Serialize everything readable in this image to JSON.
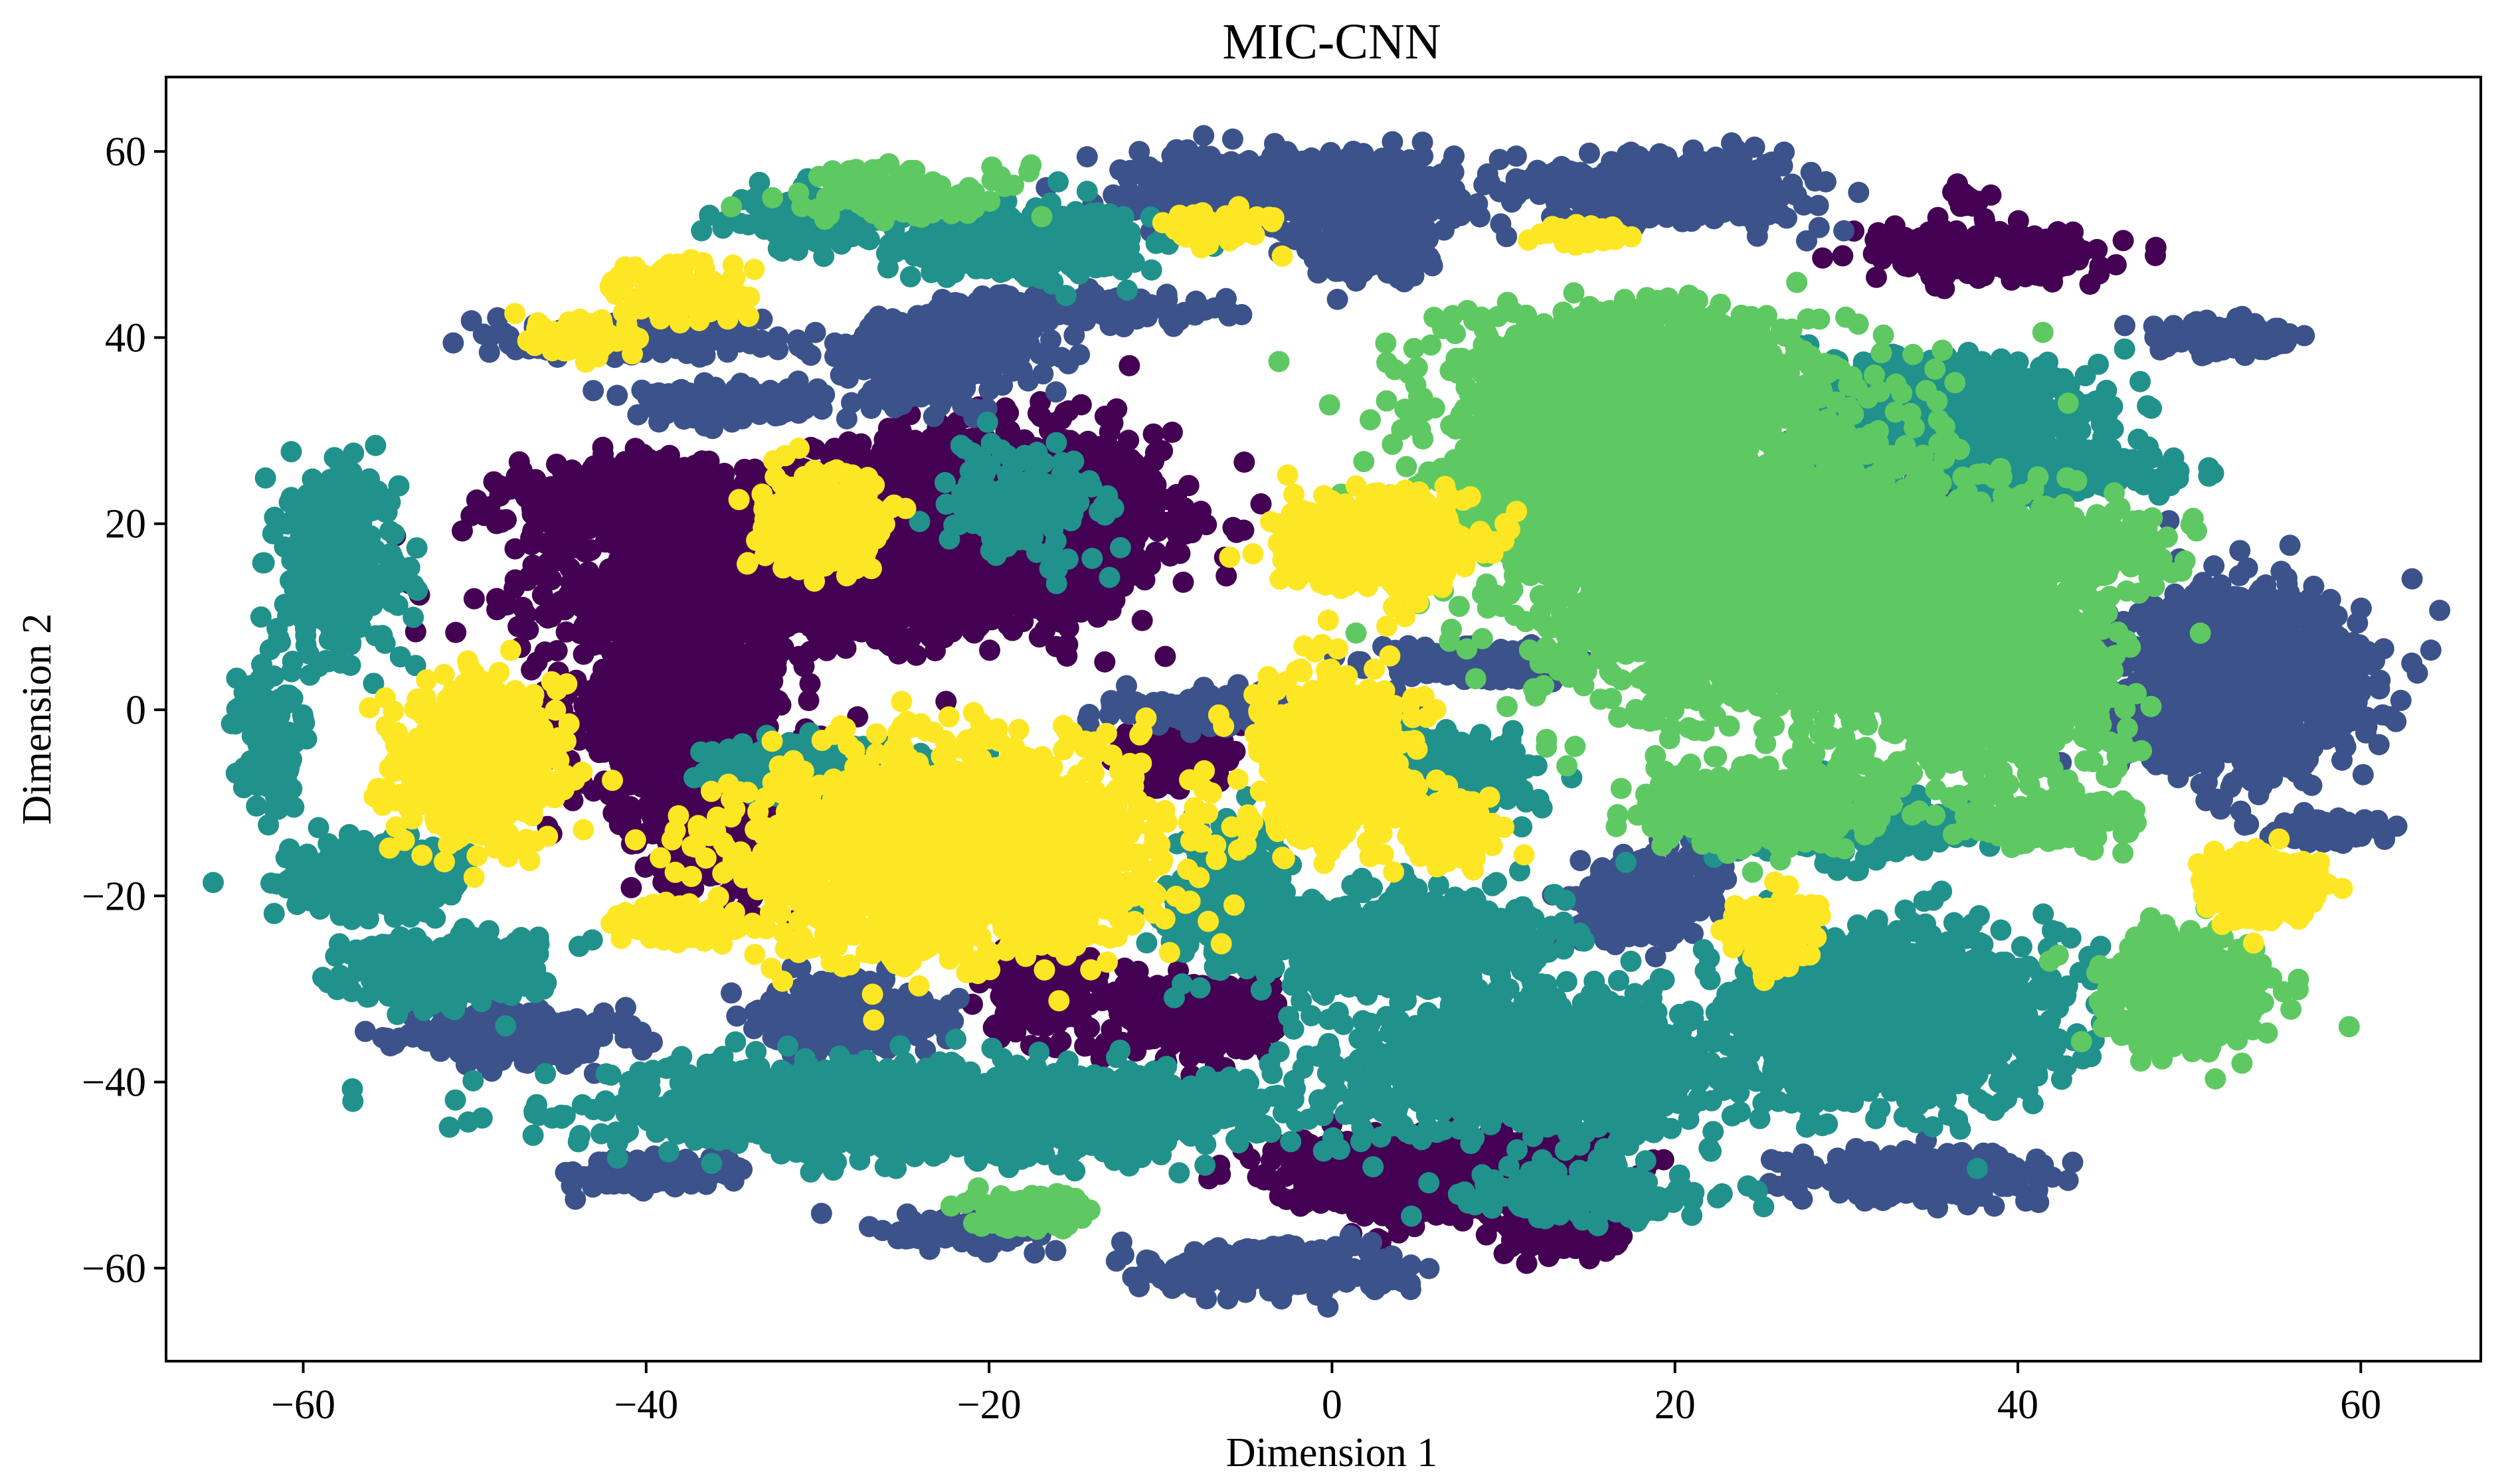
{
  "chart_data": {
    "type": "scatter",
    "title": "MIC-CNN",
    "xlabel": "Dimension 1",
    "ylabel": "Dimension 2",
    "xlim": [
      -68,
      67
    ],
    "ylim": [
      -70,
      68
    ],
    "x_ticks": [
      -60,
      -40,
      -20,
      0,
      20,
      40,
      60
    ],
    "y_ticks": [
      -60,
      -40,
      -20,
      0,
      20,
      40,
      60
    ],
    "x_tick_labels": [
      "−60",
      "−40",
      "−20",
      "0",
      "20",
      "40",
      "60"
    ],
    "y_tick_labels": [
      "−60",
      "−40",
      "−20",
      "0",
      "20",
      "40",
      "60"
    ],
    "grid": false,
    "legend": "none",
    "colors": {
      "purple": "#440154",
      "blue": "#3b528b",
      "teal": "#21918c",
      "green": "#5ec962",
      "yellow": "#fde725"
    },
    "series": [
      {
        "color": "#440154",
        "clusters": [
          {
            "cx": -20,
            "cy": 20,
            "rx": 11,
            "ry": 11,
            "n": 1700
          },
          {
            "cx": -33,
            "cy": 13,
            "rx": 15,
            "ry": 6,
            "n": 900
          },
          {
            "cx": -38,
            "cy": 0,
            "rx": 7,
            "ry": 12,
            "n": 850
          },
          {
            "cx": -40,
            "cy": 22,
            "rx": 9,
            "ry": 5,
            "n": 500
          },
          {
            "cx": -35,
            "cy": -12,
            "rx": 5,
            "ry": 8,
            "n": 450
          },
          {
            "cx": -17,
            "cy": -30,
            "rx": 3,
            "ry": 5,
            "n": 280
          },
          {
            "cx": -8,
            "cy": -33,
            "rx": 5,
            "ry": 5,
            "n": 320
          },
          {
            "cx": -9,
            "cy": -5,
            "rx": 3,
            "ry": 4,
            "n": 160
          },
          {
            "cx": 6,
            "cy": -50,
            "rx": 10,
            "ry": 5,
            "n": 700
          },
          {
            "cx": 14,
            "cy": -56,
            "rx": 4,
            "ry": 3,
            "n": 150
          },
          {
            "cx": 38,
            "cy": 49,
            "rx": 7,
            "ry": 3,
            "n": 300
          },
          {
            "cx": 37,
            "cy": 55,
            "rx": 1,
            "ry": 1,
            "n": 20
          }
        ]
      },
      {
        "color": "#3b528b",
        "clusters": [
          {
            "cx": -2,
            "cy": 56,
            "rx": 10,
            "ry": 4,
            "n": 650
          },
          {
            "cx": 2,
            "cy": 50,
            "rx": 4,
            "ry": 4,
            "n": 200
          },
          {
            "cx": 20,
            "cy": 56,
            "rx": 9,
            "ry": 4,
            "n": 400
          },
          {
            "cx": -23,
            "cy": 38,
            "rx": 6,
            "ry": 5,
            "n": 400
          },
          {
            "cx": 53,
            "cy": 3,
            "rx": 8,
            "ry": 10,
            "n": 1300
          },
          {
            "cx": -40,
            "cy": 40,
            "rx": 8,
            "ry": 2,
            "n": 220
          },
          {
            "cx": -35,
            "cy": 33,
            "rx": 6,
            "ry": 2,
            "n": 200
          },
          {
            "cx": -28,
            "cy": -33,
            "rx": 5,
            "ry": 4,
            "n": 350
          },
          {
            "cx": -48,
            "cy": -35,
            "rx": 7,
            "ry": 3,
            "n": 250
          },
          {
            "cx": -5,
            "cy": 0,
            "rx": 8,
            "ry": 2,
            "n": 250
          },
          {
            "cx": 8,
            "cy": 5,
            "rx": 6,
            "ry": 2,
            "n": 200
          },
          {
            "cx": 33,
            "cy": 17,
            "rx": 7,
            "ry": 8,
            "n": 400
          },
          {
            "cx": 18,
            "cy": -20,
            "rx": 4,
            "ry": 5,
            "n": 300
          },
          {
            "cx": 35,
            "cy": -50,
            "rx": 8,
            "ry": 3,
            "n": 250
          },
          {
            "cx": -3,
            "cy": -60,
            "rx": 8,
            "ry": 3,
            "n": 250
          },
          {
            "cx": -22,
            "cy": -56,
            "rx": 5,
            "ry": 2,
            "n": 120
          },
          {
            "cx": -40,
            "cy": -50,
            "rx": 5,
            "ry": 2,
            "n": 150
          },
          {
            "cx": 52,
            "cy": 40,
            "rx": 5,
            "ry": 2,
            "n": 120
          },
          {
            "cx": 20,
            "cy": 33,
            "rx": 4,
            "ry": 2,
            "n": 120
          },
          {
            "cx": -14,
            "cy": 43,
            "rx": 8,
            "ry": 2,
            "n": 150
          },
          {
            "cx": 58,
            "cy": -13,
            "rx": 4,
            "ry": 1.5,
            "n": 100
          }
        ]
      },
      {
        "color": "#21918c",
        "clusters": [
          {
            "cx": -22,
            "cy": -43,
            "rx": 22,
            "ry": 5,
            "n": 1500
          },
          {
            "cx": 33,
            "cy": -33,
            "rx": 10,
            "ry": 10,
            "n": 1200
          },
          {
            "cx": 12,
            "cy": -38,
            "rx": 12,
            "ry": 8,
            "n": 1000
          },
          {
            "cx": 3,
            "cy": -25,
            "rx": 10,
            "ry": 6,
            "n": 700
          },
          {
            "cx": 35,
            "cy": 32,
            "rx": 10,
            "ry": 6,
            "n": 800
          },
          {
            "cx": -56,
            "cy": -18,
            "rx": 5,
            "ry": 4,
            "n": 350
          },
          {
            "cx": -52,
            "cy": -28,
            "rx": 6,
            "ry": 4,
            "n": 350
          },
          {
            "cx": -58,
            "cy": 15,
            "rx": 4,
            "ry": 12,
            "n": 300
          },
          {
            "cx": -62,
            "cy": -3,
            "rx": 2,
            "ry": 8,
            "n": 150
          },
          {
            "cx": -18,
            "cy": 50,
            "rx": 8,
            "ry": 4,
            "n": 400
          },
          {
            "cx": -30,
            "cy": 53,
            "rx": 5,
            "ry": 3,
            "n": 150
          },
          {
            "cx": -30,
            "cy": -6,
            "rx": 6,
            "ry": 3,
            "n": 250
          },
          {
            "cx": 6,
            "cy": -7,
            "rx": 6,
            "ry": 5,
            "n": 300
          },
          {
            "cx": -6,
            "cy": -20,
            "rx": 4,
            "ry": 8,
            "n": 300
          },
          {
            "cx": 15,
            "cy": -52,
            "rx": 8,
            "ry": 3,
            "n": 200
          },
          {
            "cx": -18,
            "cy": 22,
            "rx": 5,
            "ry": 6,
            "n": 200
          },
          {
            "cx": 30,
            "cy": -12,
            "rx": 8,
            "ry": 4,
            "n": 250
          },
          {
            "cx": 42,
            "cy": 26,
            "rx": 8,
            "ry": 3,
            "n": 200
          }
        ]
      },
      {
        "color": "#5ec962",
        "clusters": [
          {
            "cx": 25,
            "cy": 15,
            "rx": 14,
            "ry": 16,
            "n": 3000
          },
          {
            "cx": 18,
            "cy": 35,
            "rx": 12,
            "ry": 8,
            "n": 1100
          },
          {
            "cx": 38,
            "cy": 5,
            "rx": 9,
            "ry": 14,
            "n": 1100
          },
          {
            "cx": 12,
            "cy": 25,
            "rx": 7,
            "ry": 8,
            "n": 500
          },
          {
            "cx": 42,
            "cy": 18,
            "rx": 8,
            "ry": 4,
            "n": 300
          },
          {
            "cx": 50,
            "cy": -30,
            "rx": 5,
            "ry": 7,
            "n": 450
          },
          {
            "cx": 25,
            "cy": -10,
            "rx": 8,
            "ry": 5,
            "n": 400
          },
          {
            "cx": -25,
            "cy": 55,
            "rx": 7,
            "ry": 3,
            "n": 150
          },
          {
            "cx": -18,
            "cy": -54,
            "rx": 4,
            "ry": 2,
            "n": 100
          },
          {
            "cx": 42,
            "cy": -12,
            "rx": 5,
            "ry": 3,
            "n": 150
          }
        ]
      },
      {
        "color": "#fde725",
        "clusters": [
          {
            "cx": -22,
            "cy": -15,
            "rx": 13,
            "ry": 12,
            "n": 1700
          },
          {
            "cx": 0,
            "cy": -5,
            "rx": 5,
            "ry": 10,
            "n": 500
          },
          {
            "cx": 3,
            "cy": 18,
            "rx": 6,
            "ry": 6,
            "n": 450
          },
          {
            "cx": -50,
            "cy": -5,
            "rx": 5,
            "ry": 9,
            "n": 550
          },
          {
            "cx": -30,
            "cy": 20,
            "rx": 4,
            "ry": 6,
            "n": 250
          },
          {
            "cx": -38,
            "cy": 45,
            "rx": 4,
            "ry": 3,
            "n": 180
          },
          {
            "cx": -44,
            "cy": 40,
            "rx": 3,
            "ry": 2,
            "n": 120
          },
          {
            "cx": -7,
            "cy": 52,
            "rx": 3,
            "ry": 2,
            "n": 80
          },
          {
            "cx": 15,
            "cy": 51,
            "rx": 3,
            "ry": 1,
            "n": 60
          },
          {
            "cx": 54,
            "cy": -19,
            "rx": 4,
            "ry": 4,
            "n": 250
          },
          {
            "cx": 26,
            "cy": -24,
            "rx": 3,
            "ry": 4,
            "n": 150
          },
          {
            "cx": -38,
            "cy": -23,
            "rx": 4,
            "ry": 2,
            "n": 100
          },
          {
            "cx": 7,
            "cy": -13,
            "rx": 3,
            "ry": 4,
            "n": 120
          }
        ]
      }
    ]
  }
}
